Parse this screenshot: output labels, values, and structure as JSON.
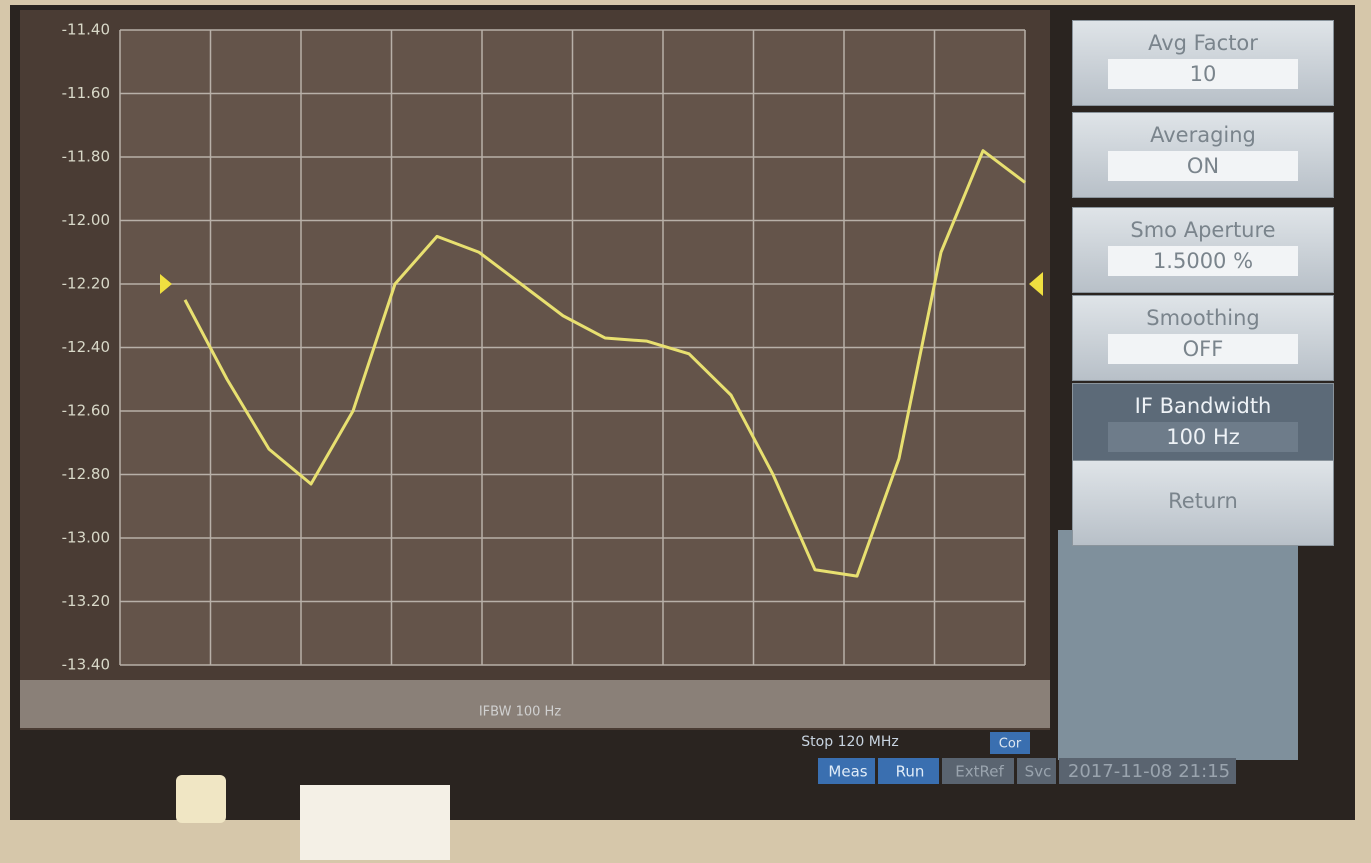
{
  "chart_data": {
    "type": "line",
    "ylim": [
      -13.4,
      -11.4
    ],
    "yticks": [
      {
        "value": -11.4,
        "label": "-11.40"
      },
      {
        "value": -11.6,
        "label": "-11.60"
      },
      {
        "value": -11.8,
        "label": "-11.80"
      },
      {
        "value": -12.0,
        "label": "-12.00"
      },
      {
        "value": -12.2,
        "label": "-12.20"
      },
      {
        "value": -12.4,
        "label": "-12.40"
      },
      {
        "value": -12.6,
        "label": "-12.60"
      },
      {
        "value": -12.8,
        "label": "-12.80"
      },
      {
        "value": -13.0,
        "label": "-13.00"
      },
      {
        "value": -13.2,
        "label": "-13.20"
      },
      {
        "value": -13.4,
        "label": "-13.40"
      }
    ],
    "reference_level": -12.2,
    "color": "#e8e070",
    "grid": true,
    "values": [
      -12.25,
      -12.5,
      -12.72,
      -12.83,
      -12.6,
      -12.2,
      -12.05,
      -12.1,
      -12.2,
      -12.3,
      -12.37,
      -12.38,
      -12.42,
      -12.55,
      -12.8,
      -13.1,
      -13.12,
      -12.75,
      -12.1,
      -11.78,
      -11.88
    ],
    "stop_label": "Stop 120 MHz",
    "ifbw_label": "IFBW 100 Hz"
  },
  "softkeys": [
    {
      "label": "Avg Factor",
      "value": "10"
    },
    {
      "label": "Averaging",
      "value": "ON"
    },
    {
      "label": "Smo Aperture",
      "value": "1.5000 %"
    },
    {
      "label": "Smoothing",
      "value": "OFF"
    },
    {
      "label": "IF Bandwidth",
      "value": "100 Hz"
    },
    {
      "label": "Return"
    }
  ],
  "status_bar": [
    "Meas",
    "Run",
    "ExtRef",
    "Svc",
    "2017-11-08 21:15"
  ],
  "cor": "Cor"
}
